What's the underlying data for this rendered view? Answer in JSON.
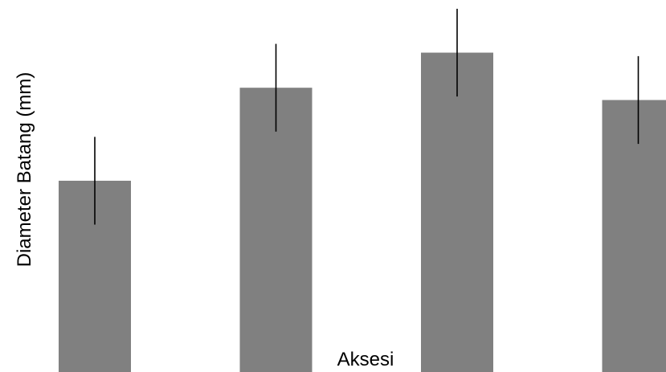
{
  "chart_data": {
    "type": "bar",
    "title": "",
    "xlabel": "Aksesi",
    "ylabel": "Diameter Batang (mm)",
    "categories": [
      "",
      "",
      "",
      ""
    ],
    "series": [
      {
        "values": [
          5.45,
          8.1,
          9.1,
          7.75
        ],
        "error": [
          1.25,
          1.25,
          1.25,
          1.25
        ]
      }
    ],
    "ylim": [
      0,
      10.6
    ],
    "grid": false,
    "legend": "none",
    "bar_color": "#808080",
    "error_color": "#000000"
  }
}
